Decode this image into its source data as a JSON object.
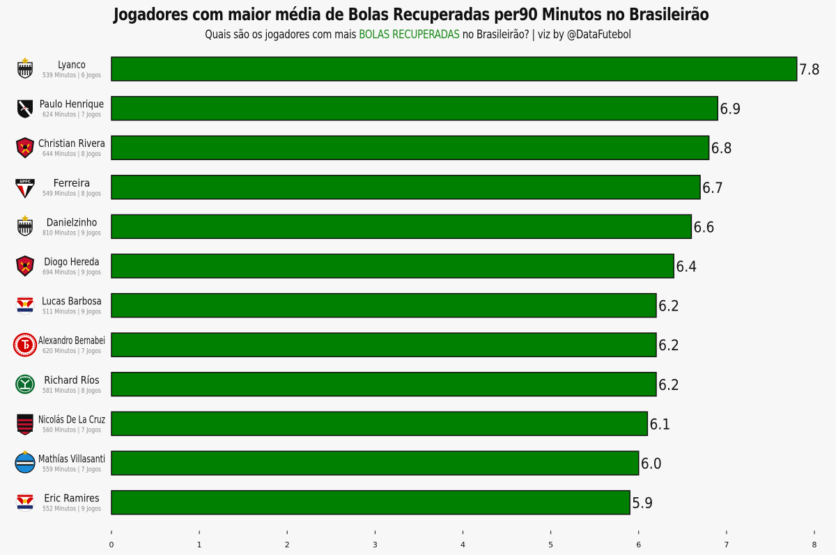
{
  "chart_data": {
    "type": "bar",
    "orientation": "horizontal",
    "title": "Jogadores com maior média de Bolas Recuperadas per90 Minutos no Brasileirão",
    "subtitle_pre": "Quais são os jogadores com mais ",
    "subtitle_highlight": "BOLAS RECUPERADAS",
    "subtitle_post": " no Brasileirão? | viz by @DataFutebol",
    "bar_color": "#008000",
    "highlight_color": "#1a8a1a",
    "xlim": [
      0,
      8
    ],
    "ticks": [
      0,
      1,
      2,
      3,
      4,
      5,
      6,
      7,
      8
    ],
    "grid": false,
    "players": [
      {
        "name": "Lyanco",
        "stats": "539 Minutos | 6 Jogos",
        "value": 7.8,
        "value_label": "7.8",
        "club_icon": "atletico-mg-crest-icon"
      },
      {
        "name": "Paulo Henrique",
        "stats": "624 Minutos | 7 Jogos",
        "value": 6.9,
        "value_label": "6.9",
        "club_icon": "vasco-crest-icon"
      },
      {
        "name": "Christian Rivera",
        "stats": "644 Minutos | 8 Jogos",
        "value": 6.8,
        "value_label": "6.8",
        "club_icon": "sport-recife-crest-icon"
      },
      {
        "name": "Ferreira",
        "stats": "549 Minutos | 8 Jogos",
        "value": 6.7,
        "value_label": "6.7",
        "club_icon": "sao-paulo-crest-icon"
      },
      {
        "name": "Danielzinho",
        "stats": "810 Minutos | 9 Jogos",
        "value": 6.6,
        "value_label": "6.6",
        "club_icon": "atletico-mg-crest-icon"
      },
      {
        "name": "Diogo Hereda",
        "stats": "694 Minutos | 9 Jogos",
        "value": 6.4,
        "value_label": "6.4",
        "club_icon": "sport-recife-crest-icon"
      },
      {
        "name": "Lucas Barbosa",
        "stats": "511 Minutos | 9 Jogos",
        "value": 6.2,
        "value_label": "6.2",
        "club_icon": "red-bull-bragantino-crest-icon"
      },
      {
        "name": "Alexandro Bernabei",
        "stats": "620 Minutos | 7 Jogos",
        "value": 6.2,
        "value_label": "6.2",
        "club_icon": "internacional-crest-icon"
      },
      {
        "name": "Richard Ríos",
        "stats": "581 Minutos | 8 Jogos",
        "value": 6.2,
        "value_label": "6.2",
        "club_icon": "palmeiras-crest-icon"
      },
      {
        "name": "Nicolás De La Cruz",
        "stats": "560 Minutos | 7 Jogos",
        "value": 6.1,
        "value_label": "6.1",
        "club_icon": "flamengo-crest-icon"
      },
      {
        "name": "Mathías Villasanti",
        "stats": "559 Minutos | 7 Jogos",
        "value": 6.0,
        "value_label": "6.0",
        "club_icon": "gremio-crest-icon"
      },
      {
        "name": "Eric Ramires",
        "stats": "552 Minutos | 9 Jogos",
        "value": 5.9,
        "value_label": "5.9",
        "club_icon": "red-bull-bragantino-crest-icon"
      }
    ]
  }
}
